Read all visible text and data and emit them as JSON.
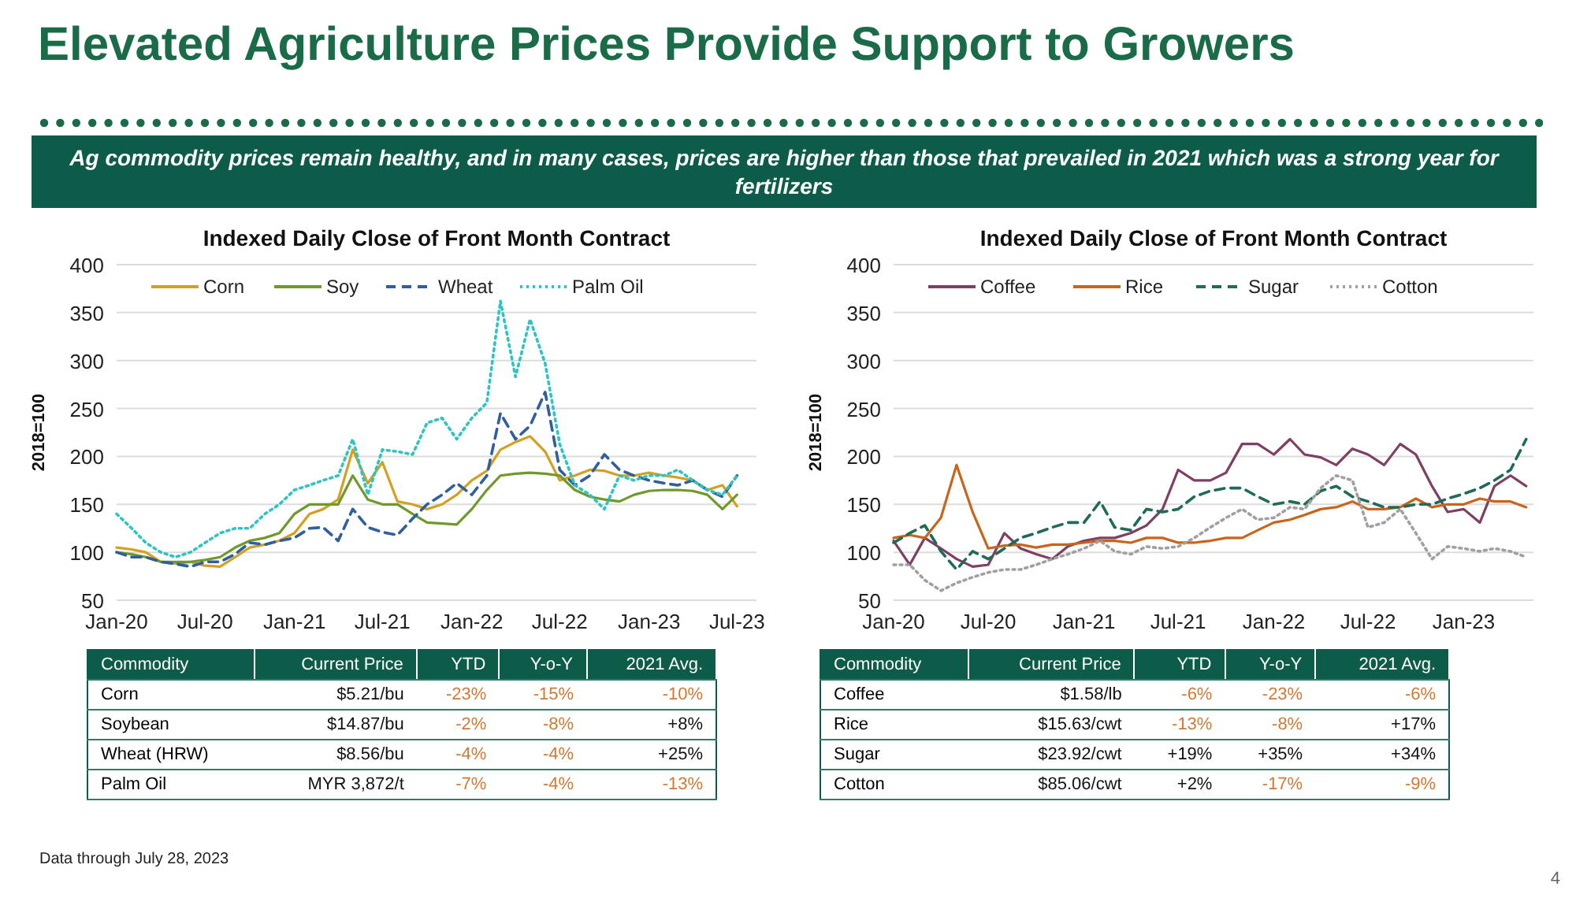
{
  "chart_data": [
    {
      "type": "other",
      "title": "Elevated Agriculture Prices Provide Support to Growers",
      "subtitle": "Ag commodity prices remain healthy, and in many cases, prices are higher than those that prevailed in 2021 which was a strong year for fertilizers",
      "annotations": [
        "Data through July 28, 2023",
        "4"
      ]
    },
    {
      "type": "line",
      "title": "Indexed Daily Close of Front Month Contract",
      "ylabel": "2018=100",
      "xlim": [
        "2020-01-01",
        "2023-08-10"
      ],
      "ylim": [
        50,
        400
      ],
      "yticks": [
        50,
        100,
        150,
        200,
        250,
        300,
        350,
        400
      ],
      "xticks": [
        {
          "value": "2020-01",
          "label": "Jan-20"
        },
        {
          "value": "2020-07",
          "label": "Jul-20"
        },
        {
          "value": "2021-01",
          "label": "Jan-21"
        },
        {
          "value": "2021-07",
          "label": "Jul-21"
        },
        {
          "value": "2022-01",
          "label": "Jan-22"
        },
        {
          "value": "2022-07",
          "label": "Jul-22"
        },
        {
          "value": "2023-01",
          "label": "Jan-23"
        },
        {
          "value": "2023-07",
          "label": "Jul-23"
        }
      ],
      "grid": "y",
      "legend": "top",
      "marker": "none",
      "x": [
        "2020-01",
        "2020-02",
        "2020-03",
        "2020-04",
        "2020-05",
        "2020-06",
        "2020-07",
        "2020-08",
        "2020-09",
        "2020-10",
        "2020-11",
        "2020-12",
        "2021-01",
        "2021-02",
        "2021-03",
        "2021-04",
        "2021-05",
        "2021-06",
        "2021-07",
        "2021-08",
        "2021-09",
        "2021-10",
        "2021-11",
        "2021-12",
        "2022-01",
        "2022-02",
        "2022-03",
        "2022-04",
        "2022-05",
        "2022-06",
        "2022-07",
        "2022-08",
        "2022-09",
        "2022-10",
        "2022-11",
        "2022-12",
        "2023-01",
        "2023-02",
        "2023-03",
        "2023-04",
        "2023-05",
        "2023-06",
        "2023-07"
      ],
      "series": [
        {
          "name": "Corn",
          "color": "#d4a020",
          "line_style": "solid",
          "values": [
            105,
            103,
            100,
            90,
            88,
            90,
            86,
            85,
            95,
            105,
            108,
            112,
            120,
            140,
            145,
            155,
            207,
            172,
            194,
            153,
            150,
            145,
            150,
            160,
            175,
            185,
            207,
            215,
            221,
            205,
            175,
            180,
            186,
            185,
            180,
            180,
            183,
            180,
            178,
            175,
            165,
            170,
            148
          ]
        },
        {
          "name": "Soy",
          "color": "#6f9a2b",
          "line_style": "solid",
          "values": [
            100,
            98,
            95,
            90,
            90,
            90,
            92,
            95,
            105,
            112,
            115,
            120,
            140,
            150,
            150,
            150,
            180,
            155,
            150,
            150,
            140,
            131,
            130,
            129,
            145,
            165,
            180,
            182,
            183,
            182,
            180,
            165,
            158,
            155,
            153,
            160,
            164,
            165,
            165,
            164,
            160,
            145,
            160
          ]
        },
        {
          "name": "Wheat",
          "color": "#2f5f9f",
          "line_style": "dashed",
          "values": [
            100,
            95,
            95,
            90,
            88,
            85,
            90,
            90,
            98,
            110,
            108,
            112,
            115,
            125,
            126,
            112,
            145,
            126,
            121,
            118,
            135,
            150,
            160,
            172,
            160,
            180,
            245,
            218,
            232,
            267,
            186,
            170,
            180,
            202,
            186,
            180,
            175,
            172,
            170,
            175,
            165,
            158,
            180
          ]
        },
        {
          "name": "Palm Oil",
          "color": "#2ec4c4",
          "line_style": "dotted",
          "values": [
            140,
            125,
            110,
            100,
            95,
            100,
            110,
            120,
            125,
            125,
            140,
            150,
            165,
            170,
            175,
            180,
            218,
            160,
            207,
            205,
            202,
            235,
            240,
            218,
            240,
            256,
            362,
            283,
            343,
            297,
            213,
            170,
            160,
            145,
            180,
            175,
            180,
            180,
            186,
            175,
            165,
            160,
            180
          ]
        }
      ]
    },
    {
      "type": "line",
      "title": "Indexed Daily Close of Front Month Contract",
      "ylabel": "2018=100",
      "xlim": [
        "2020-01-01",
        "2023-05-15"
      ],
      "ylim": [
        50,
        400
      ],
      "yticks": [
        50,
        100,
        150,
        200,
        250,
        300,
        350,
        400
      ],
      "xticks": [
        {
          "value": "2020-01",
          "label": "Jan-20"
        },
        {
          "value": "2020-07",
          "label": "Jul-20"
        },
        {
          "value": "2021-01",
          "label": "Jan-21"
        },
        {
          "value": "2021-07",
          "label": "Jul-21"
        },
        {
          "value": "2022-01",
          "label": "Jan-22"
        },
        {
          "value": "2022-07",
          "label": "Jul-22"
        },
        {
          "value": "2023-01",
          "label": "Jan-23"
        }
      ],
      "grid": "y",
      "legend": "top",
      "marker": "none",
      "x": [
        "2020-01",
        "2020-02",
        "2020-03",
        "2020-04",
        "2020-05",
        "2020-06",
        "2020-07",
        "2020-08",
        "2020-09",
        "2020-10",
        "2020-11",
        "2020-12",
        "2021-01",
        "2021-02",
        "2021-03",
        "2021-04",
        "2021-05",
        "2021-06",
        "2021-07",
        "2021-08",
        "2021-09",
        "2021-10",
        "2021-11",
        "2021-12",
        "2022-01",
        "2022-02",
        "2022-03",
        "2022-04",
        "2022-05",
        "2022-06",
        "2022-07",
        "2022-08",
        "2022-09",
        "2022-10",
        "2022-11",
        "2022-12",
        "2023-01",
        "2023-02",
        "2023-03",
        "2023-04",
        "2023-05"
      ],
      "series": [
        {
          "name": "Coffee",
          "color": "#7f3f63",
          "line_style": "solid",
          "values": [
            112,
            87,
            115,
            104,
            93,
            85,
            87,
            120,
            104,
            98,
            93,
            106,
            112,
            115,
            115,
            120,
            128,
            145,
            186,
            175,
            175,
            183,
            213,
            213,
            202,
            218,
            202,
            199,
            191,
            208,
            202,
            191,
            213,
            202,
            169,
            142,
            145,
            131,
            169,
            180,
            169
          ]
        },
        {
          "name": "Rice",
          "color": "#c8651b",
          "line_style": "solid",
          "values": [
            115,
            118,
            115,
            136,
            191,
            142,
            104,
            107,
            108,
            105,
            108,
            108,
            110,
            112,
            112,
            110,
            115,
            115,
            110,
            110,
            112,
            115,
            115,
            123,
            131,
            134,
            139,
            145,
            147,
            153,
            145,
            145,
            147,
            156,
            147,
            150,
            150,
            156,
            153,
            153,
            147
          ]
        },
        {
          "name": "Sugar",
          "color": "#1f6b5a",
          "line_style": "dashed",
          "values": [
            110,
            120,
            128,
            101,
            82,
            101,
            93,
            104,
            115,
            120,
            126,
            131,
            131,
            153,
            126,
            123,
            145,
            142,
            145,
            158,
            164,
            167,
            167,
            158,
            150,
            153,
            150,
            164,
            169,
            158,
            153,
            147,
            147,
            150,
            150,
            156,
            161,
            167,
            175,
            186,
            218
          ]
        },
        {
          "name": "Cotton",
          "color": "#a0a0a0",
          "line_style": "dotted",
          "values": [
            87,
            87,
            71,
            60,
            68,
            74,
            79,
            82,
            82,
            87,
            93,
            98,
            104,
            112,
            101,
            98,
            106,
            104,
            106,
            115,
            126,
            136,
            145,
            134,
            136,
            147,
            145,
            167,
            180,
            175,
            126,
            131,
            145,
            120,
            93,
            106,
            104,
            101,
            104,
            101,
            95
          ]
        }
      ]
    },
    {
      "type": "other",
      "categories": [
        "Commodity",
        "Current Price",
        "YTD",
        "Y-o-Y",
        "2021 Avg."
      ],
      "y_categories": [
        "Corn",
        "Soybean",
        "Wheat (HRW)",
        "Palm Oil"
      ],
      "cell_labels": [
        [
          "$5.21/bu",
          "-23%",
          "-15%",
          "-10%"
        ],
        [
          "$14.87/bu",
          "-2%",
          "-8%",
          "+8%"
        ],
        [
          "$8.56/bu",
          "-4%",
          "-4%",
          "+25%"
        ],
        [
          "MYR 3,872/t",
          "-7%",
          "-4%",
          "-13%"
        ]
      ]
    },
    {
      "type": "other",
      "categories": [
        "Commodity",
        "Current Price",
        "YTD",
        "Y-o-Y",
        "2021 Avg."
      ],
      "y_categories": [
        "Coffee",
        "Rice",
        "Sugar",
        "Cotton"
      ],
      "cell_labels": [
        [
          "$1.58/lb",
          "-6%",
          "-23%",
          "-6%"
        ],
        [
          "$15.63/cwt",
          "-13%",
          "-8%",
          "+17%"
        ],
        [
          "$23.92/cwt",
          "+19%",
          "+35%",
          "+34%"
        ],
        [
          "$85.06/cwt",
          "+2%",
          "-17%",
          "-9%"
        ]
      ]
    }
  ]
}
